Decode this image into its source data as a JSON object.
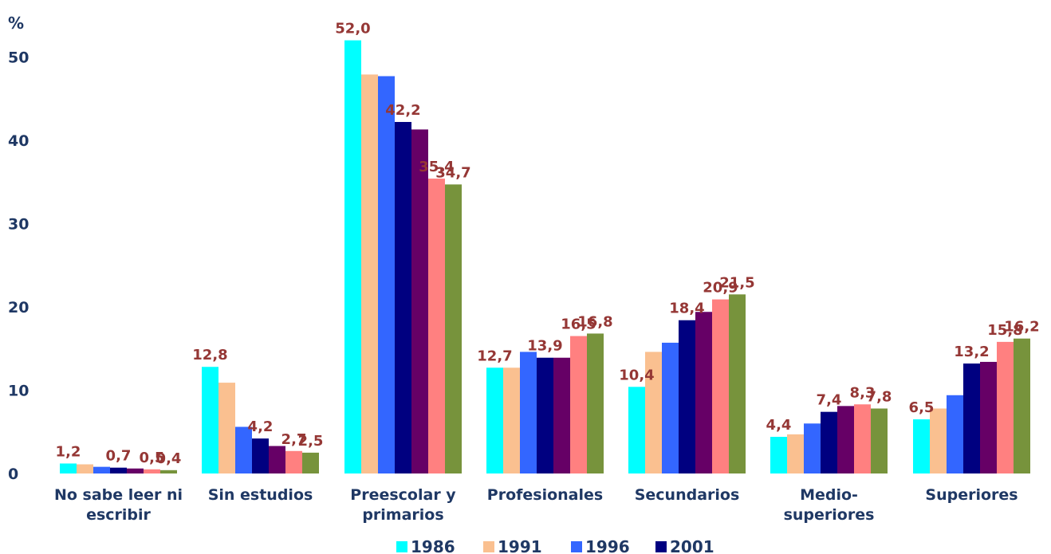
{
  "chart_data": {
    "type": "bar",
    "ylabel": "%",
    "ylim": [
      0,
      55
    ],
    "yticks": [
      "0",
      "10",
      "20",
      "30",
      "40",
      "50"
    ],
    "grid": false,
    "legend_placement": "bottom",
    "categories": [
      [
        "No sabe leer ni",
        "escribir"
      ],
      [
        "Sin estudios"
      ],
      [
        "Preescolar y",
        "primarios"
      ],
      [
        "Profesionales"
      ],
      [
        "Secundarios"
      ],
      [
        "Medio-",
        "superiores"
      ],
      [
        "Superiores"
      ]
    ],
    "series": [
      {
        "name": "1986",
        "color": "#00FFFF",
        "values": [
          1.2,
          12.8,
          52.0,
          12.7,
          10.4,
          4.4,
          6.5
        ],
        "labels": [
          "1,2",
          "12,8",
          "52,0",
          "12,7",
          "10,4",
          "4,4",
          "6,5"
        ]
      },
      {
        "name": "1991",
        "color": "#FAC090",
        "values": [
          1.1,
          10.9,
          47.9,
          12.7,
          14.6,
          4.7,
          7.8
        ],
        "labels": [
          "",
          "",
          "",
          "",
          "",
          "",
          ""
        ]
      },
      {
        "name": "1996",
        "color": "#3366FF",
        "values": [
          0.8,
          5.6,
          47.7,
          14.6,
          15.7,
          6.0,
          9.4
        ],
        "labels": [
          "",
          "",
          "",
          "",
          "",
          "",
          ""
        ]
      },
      {
        "name": "2001",
        "color": "#000080",
        "values": [
          0.7,
          4.2,
          42.2,
          13.9,
          18.4,
          7.4,
          13.2
        ],
        "labels": [
          "0,7",
          "4,2",
          "42,2",
          "13,9",
          "18,4",
          "7,4",
          "13,2"
        ]
      },
      {
        "name": "",
        "color": "#660066",
        "values": [
          0.6,
          3.3,
          41.3,
          13.9,
          19.4,
          8.1,
          13.4
        ],
        "labels": [
          "",
          "",
          "",
          "",
          "",
          "",
          ""
        ]
      },
      {
        "name": "",
        "color": "#FF8080",
        "values": [
          0.5,
          2.7,
          35.4,
          16.5,
          20.9,
          8.3,
          15.8
        ],
        "labels": [
          "0,5",
          "2,7",
          "35,4",
          "16,5",
          "20,9",
          "8,3",
          "15,8"
        ]
      },
      {
        "name": "",
        "color": "#77933C",
        "values": [
          0.4,
          2.5,
          34.7,
          16.8,
          21.5,
          7.8,
          16.2
        ],
        "labels": [
          "0,4",
          "2,5",
          "34,7",
          "16,8",
          "21,5",
          "7,8",
          "16,2"
        ]
      }
    ]
  }
}
